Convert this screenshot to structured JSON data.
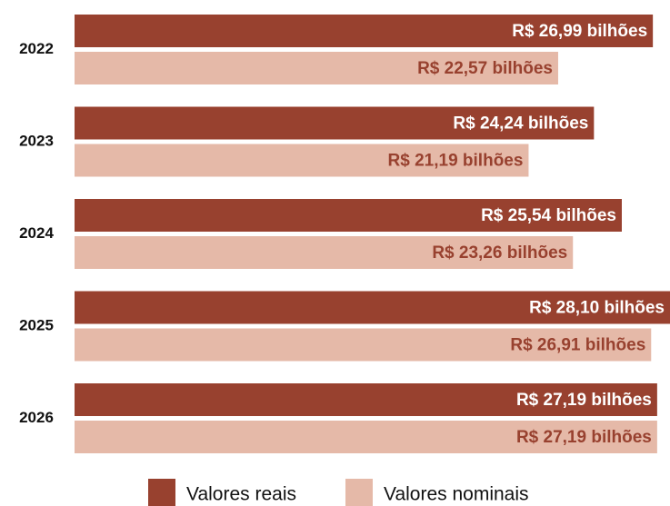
{
  "chart_data": {
    "type": "bar",
    "orientation": "horizontal",
    "categories": [
      "2022",
      "2023",
      "2024",
      "2025",
      "2026"
    ],
    "series": [
      {
        "name": "Valores reais",
        "color": "#98412f",
        "values": [
          26.99,
          24.24,
          25.54,
          28.1,
          27.19
        ],
        "value_labels": [
          "R$ 26,99 bilhões",
          "R$ 24,24 bilhões",
          "R$ 25,54 bilhões",
          "R$ 28,10 bilhões",
          "R$ 27,19 bilhões"
        ],
        "label_color": "#ffffff"
      },
      {
        "name": "Valores nominais",
        "color": "#e5b9a8",
        "values": [
          22.57,
          21.19,
          23.26,
          26.91,
          27.19
        ],
        "value_labels": [
          "R$ 22,57 bilhões",
          "R$ 21,19 bilhões",
          "R$ 23,26 bilhões",
          "R$ 26,91 bilhões",
          "R$ 27,19 bilhões"
        ],
        "label_color": "#98412f"
      }
    ],
    "legend": "bottom"
  }
}
